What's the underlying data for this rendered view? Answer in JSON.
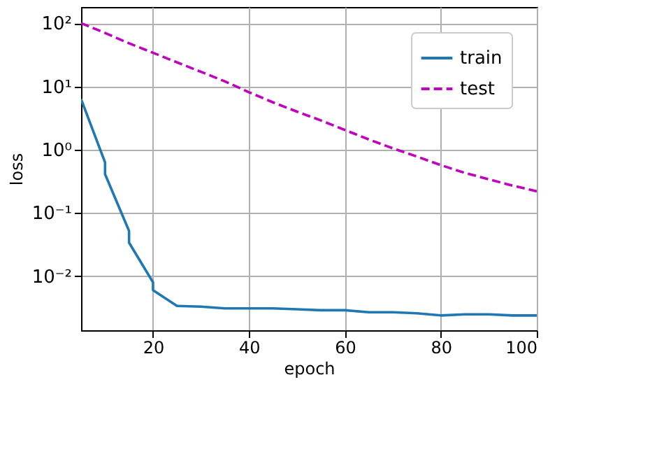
{
  "chart_data": {
    "type": "line",
    "xlabel": "epoch",
    "ylabel": "loss",
    "log": "y",
    "grid": true,
    "legend": "top right",
    "xlim": [
      5,
      100
    ],
    "xticks": [
      20,
      40,
      60,
      80,
      100
    ],
    "ylim": [
      0.0014,
      180
    ],
    "yticks": [
      {
        "value": 0.01,
        "label": "10⁻²"
      },
      {
        "value": 0.1,
        "label": "10⁻¹"
      },
      {
        "value": 1,
        "label": "10⁰"
      },
      {
        "value": 10,
        "label": "10¹"
      },
      {
        "value": 100,
        "label": "10²"
      }
    ],
    "series": [
      {
        "name": "train",
        "color": "#1f77b4",
        "line_style": "solid",
        "x": [
          5,
          10,
          10,
          15,
          15,
          20,
          20,
          25,
          30,
          35,
          40,
          45,
          50,
          55,
          60,
          65,
          70,
          75,
          80,
          85,
          90,
          95,
          100
        ],
        "values": [
          6.3,
          0.63,
          0.41,
          0.052,
          0.034,
          0.008,
          0.006,
          0.0034,
          0.0033,
          0.0031,
          0.0031,
          0.0031,
          0.003,
          0.0029,
          0.0029,
          0.0027,
          0.0027,
          0.0026,
          0.0024,
          0.0025,
          0.0025,
          0.0024,
          0.0024
        ]
      },
      {
        "name": "test",
        "color": "#bf00bf",
        "line_style": "dashed",
        "x": [
          5,
          10,
          15,
          20,
          25,
          30,
          35,
          40,
          45,
          50,
          55,
          60,
          65,
          70,
          75,
          80,
          85,
          90,
          95,
          100
        ],
        "values": [
          100,
          70,
          48,
          34,
          24,
          17,
          12,
          8.1,
          5.6,
          4.0,
          2.9,
          2.05,
          1.45,
          1.05,
          0.78,
          0.57,
          0.43,
          0.34,
          0.27,
          0.22
        ]
      }
    ]
  }
}
